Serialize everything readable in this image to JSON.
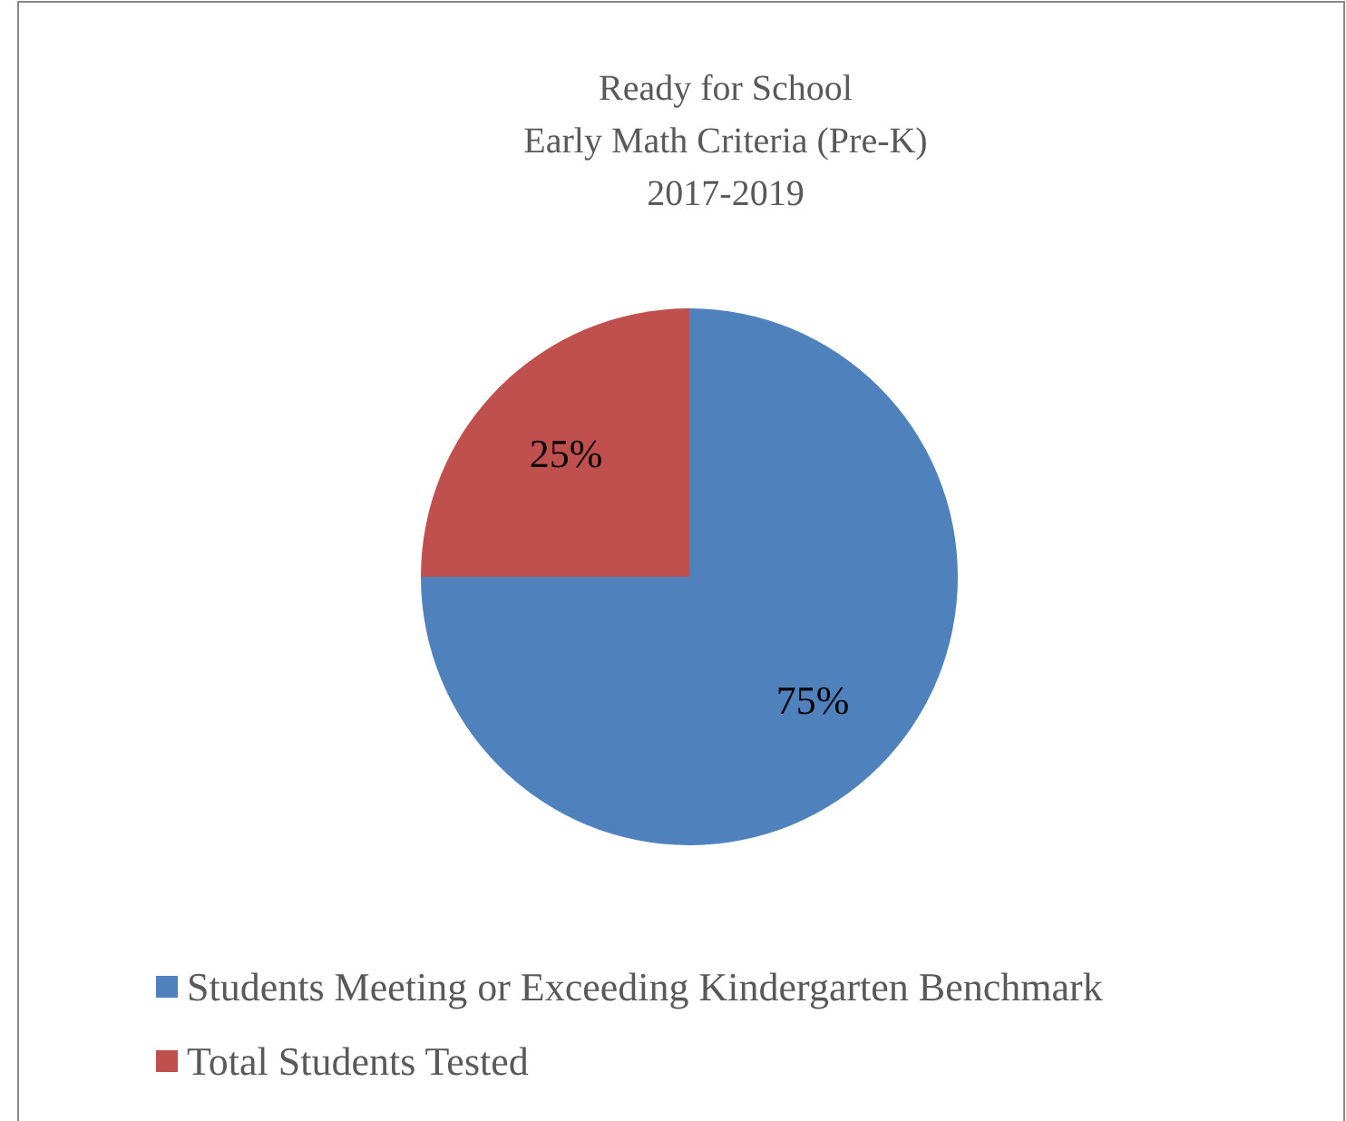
{
  "chart_data": {
    "type": "pie",
    "title": "Ready for School\nEarly Math Criteria (Pre-K)\n2017-2019",
    "categories": [
      "Students Meeting or Exceeding Kindergarten Benchmark",
      "Total Students Tested"
    ],
    "values": [
      75,
      25
    ],
    "colors": [
      "#4f81bd",
      "#c0504d"
    ],
    "value_labels": [
      "75%",
      "25%"
    ],
    "legend": "bottom"
  }
}
